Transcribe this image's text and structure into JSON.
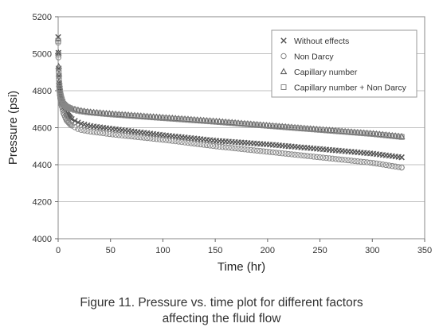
{
  "caption": {
    "line1": "Figure 11. Pressure vs. time plot for different factors",
    "line2": "affecting the fluid flow"
  },
  "chart_data": {
    "type": "scatter",
    "xlabel": "Time (hr)",
    "ylabel": "Pressure (psi)",
    "xlim": [
      0,
      350
    ],
    "ylim": [
      4000,
      5200
    ],
    "xticks": [
      "0",
      "50",
      "100",
      "150",
      "200",
      "250",
      "300",
      "350"
    ],
    "yticks": [
      "4000",
      "4200",
      "4400",
      "4600",
      "4800",
      "5000",
      "5200"
    ],
    "grid": "horizontal",
    "legend_position": "top-right",
    "marker_color": "#555555",
    "series": [
      {
        "name": "Without effects",
        "marker": "x",
        "x": [
          0,
          0.5,
          1,
          2,
          3,
          5,
          8,
          12,
          20,
          30,
          50,
          100,
          150,
          200,
          250,
          300,
          328
        ],
        "y": [
          5090,
          4920,
          4840,
          4780,
          4750,
          4710,
          4675,
          4650,
          4625,
          4610,
          4595,
          4560,
          4530,
          4510,
          4485,
          4460,
          4440
        ]
      },
      {
        "name": "Non Darcy",
        "marker": "circle",
        "x": [
          0,
          0.5,
          1,
          2,
          3,
          5,
          8,
          12,
          20,
          30,
          50,
          100,
          150,
          200,
          250,
          300,
          328
        ],
        "y": [
          5060,
          4900,
          4820,
          4760,
          4725,
          4680,
          4640,
          4615,
          4590,
          4580,
          4565,
          4535,
          4500,
          4470,
          4440,
          4410,
          4385
        ]
      },
      {
        "name": "Capillary number",
        "marker": "triangle",
        "x": [
          0,
          0.5,
          1,
          2,
          3,
          5,
          8,
          12,
          20,
          30,
          50,
          100,
          150,
          200,
          250,
          300,
          328
        ],
        "y": [
          5080,
          4930,
          4850,
          4790,
          4765,
          4735,
          4715,
          4705,
          4693,
          4685,
          4675,
          4655,
          4635,
          4612,
          4590,
          4568,
          4552
        ]
      },
      {
        "name": "Capillary number + Non Darcy",
        "marker": "square",
        "x": [
          0,
          0.5,
          1,
          2,
          3,
          5,
          8,
          12,
          20,
          30,
          50,
          100,
          150,
          200,
          250,
          300,
          328
        ],
        "y": [
          5070,
          4920,
          4840,
          4785,
          4760,
          4730,
          4712,
          4702,
          4690,
          4682,
          4672,
          4652,
          4632,
          4610,
          4588,
          4566,
          4550
        ]
      }
    ]
  }
}
